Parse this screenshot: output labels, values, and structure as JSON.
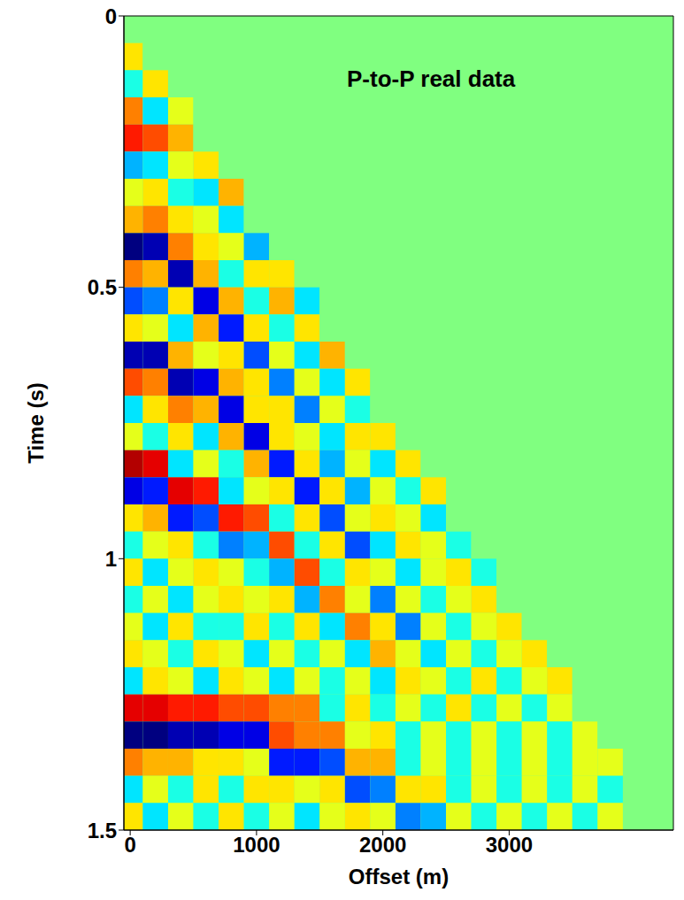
{
  "chart_data": {
    "type": "heatmap",
    "annotation": "P-to-P real data",
    "x_label": "Offset (m)",
    "y_label": "Time (s)",
    "xlim": [
      -50,
      4300
    ],
    "xticks": [
      0,
      1000,
      2000,
      3000
    ],
    "ylim": [
      0,
      1.5
    ],
    "yticks": [
      0,
      0.5,
      1,
      1.5
    ],
    "zlim": [
      -1,
      1
    ],
    "x_edges": [
      -100,
      100,
      300,
      500,
      700,
      900,
      1100,
      1300,
      1500,
      1700,
      1900,
      2100,
      2300,
      2500,
      2700,
      2900,
      3100,
      3300,
      3500,
      3700,
      3900
    ],
    "t_edges": [
      0,
      0.05,
      0.1,
      0.15,
      0.2,
      0.25,
      0.3,
      0.35,
      0.4,
      0.45,
      0.5,
      0.55,
      0.6,
      0.65,
      0.7,
      0.75,
      0.8,
      0.85,
      0.9,
      0.95,
      1,
      1.05,
      1.1,
      1.15,
      1.2,
      1.25,
      1.3,
      1.35,
      1.4,
      1.45,
      1.5
    ],
    "cells": [
      [
        0,
        0,
        0,
        0,
        0,
        0,
        0,
        0,
        0,
        0,
        0,
        0,
        0,
        0,
        0,
        0,
        0,
        0,
        0,
        0
      ],
      [
        0.3,
        0,
        0,
        0,
        0,
        0,
        0,
        0,
        0,
        0,
        0,
        0,
        0,
        0,
        0,
        0,
        0,
        0,
        0,
        0
      ],
      [
        -0.2,
        0.3,
        0,
        0,
        0,
        0,
        0,
        0,
        0,
        0,
        0,
        0,
        0,
        0,
        0,
        0,
        0,
        0,
        0,
        0
      ],
      [
        0.5,
        -0.3,
        0.2,
        0,
        0,
        0,
        0,
        0,
        0,
        0,
        0,
        0,
        0,
        0,
        0,
        0,
        0,
        0,
        0,
        0
      ],
      [
        0.7,
        0.6,
        0.4,
        0,
        0,
        0,
        0,
        0,
        0,
        0,
        0,
        0,
        0,
        0,
        0,
        0,
        0,
        0,
        0,
        0
      ],
      [
        -0.4,
        -0.3,
        0.2,
        0.3,
        0,
        0,
        0,
        0,
        0,
        0,
        0,
        0,
        0,
        0,
        0,
        0,
        0,
        0,
        0,
        0
      ],
      [
        0.2,
        0.3,
        -0.2,
        -0.3,
        0.4,
        0,
        0,
        0,
        0,
        0,
        0,
        0,
        0,
        0,
        0,
        0,
        0,
        0,
        0,
        0
      ],
      [
        0.4,
        0.5,
        0.3,
        0.2,
        -0.3,
        0,
        0,
        0,
        0,
        0,
        0,
        0,
        0,
        0,
        0,
        0,
        0,
        0,
        0,
        0
      ],
      [
        -1,
        -0.9,
        0.5,
        0.3,
        0.2,
        -0.4,
        0,
        0,
        0,
        0,
        0,
        0,
        0,
        0,
        0,
        0,
        0,
        0,
        0,
        0
      ],
      [
        0.5,
        0.4,
        -0.9,
        0.4,
        -0.2,
        0.3,
        0.3,
        0,
        0,
        0,
        0,
        0,
        0,
        0,
        0,
        0,
        0,
        0,
        0,
        0
      ],
      [
        -0.6,
        -0.5,
        0.3,
        -0.8,
        0.4,
        -0.2,
        0.4,
        -0.3,
        0,
        0,
        0,
        0,
        0,
        0,
        0,
        0,
        0,
        0,
        0,
        0
      ],
      [
        0.3,
        0.2,
        -0.3,
        0.4,
        -0.7,
        0.3,
        -0.2,
        0.3,
        0,
        0,
        0,
        0,
        0,
        0,
        0,
        0,
        0,
        0,
        0,
        0
      ],
      [
        -0.9,
        -0.9,
        0.4,
        0.2,
        0.3,
        -0.6,
        0.2,
        -0.3,
        0.4,
        0,
        0,
        0,
        0,
        0,
        0,
        0,
        0,
        0,
        0,
        0
      ],
      [
        0.6,
        0.5,
        -0.9,
        -0.8,
        0.4,
        0.3,
        -0.5,
        0.2,
        -0.3,
        0.3,
        0,
        0,
        0,
        0,
        0,
        0,
        0,
        0,
        0,
        0
      ],
      [
        -0.3,
        0.3,
        0.5,
        0.4,
        -0.8,
        0.3,
        0.3,
        -0.5,
        0.2,
        -0.2,
        0,
        0,
        0,
        0,
        0,
        0,
        0,
        0,
        0,
        0
      ],
      [
        0.2,
        -0.2,
        0.3,
        -0.3,
        0.4,
        -0.8,
        0.3,
        0.2,
        -0.3,
        0.3,
        0.3,
        0,
        0,
        0,
        0,
        0,
        0,
        0,
        0,
        0
      ],
      [
        0.9,
        0.8,
        -0.3,
        0.2,
        -0.2,
        0.4,
        -0.7,
        0.3,
        -0.4,
        0.2,
        -0.3,
        0.3,
        0,
        0,
        0,
        0,
        0,
        0,
        0,
        0
      ],
      [
        -0.8,
        -0.7,
        0.8,
        0.7,
        -0.3,
        0.2,
        0.3,
        -0.7,
        0.3,
        -0.4,
        0.2,
        -0.2,
        0.3,
        0,
        0,
        0,
        0,
        0,
        0,
        0
      ],
      [
        0.3,
        0.4,
        -0.7,
        -0.6,
        0.7,
        0.6,
        -0.2,
        0.3,
        -0.6,
        0.2,
        0.3,
        0.2,
        -0.3,
        0,
        0,
        0,
        0,
        0,
        0,
        0
      ],
      [
        -0.2,
        0.2,
        0.3,
        -0.2,
        -0.5,
        -0.4,
        0.6,
        -0.2,
        0.3,
        -0.6,
        -0.3,
        0.3,
        0.2,
        -0.2,
        0,
        0,
        0,
        0,
        0,
        0
      ],
      [
        0.3,
        -0.3,
        0.2,
        0.3,
        0.2,
        -0.2,
        -0.4,
        0.6,
        -0.2,
        0.3,
        0.2,
        -0.3,
        0.2,
        0.3,
        -0.2,
        0,
        0,
        0,
        0,
        0
      ],
      [
        -0.2,
        0.2,
        -0.3,
        0.2,
        0.3,
        0.2,
        0.3,
        -0.4,
        0.5,
        0.2,
        -0.5,
        0.2,
        -0.2,
        0.2,
        0.3,
        0,
        0,
        0,
        0,
        0
      ],
      [
        0.2,
        -0.3,
        0.3,
        -0.2,
        -0.2,
        0.3,
        -0.2,
        0.3,
        -0.3,
        0.5,
        0.3,
        -0.5,
        0.2,
        -0.2,
        0.2,
        0.3,
        0,
        0,
        0,
        0
      ],
      [
        0.3,
        0.2,
        -0.2,
        0.3,
        0.2,
        -0.3,
        0.2,
        -0.2,
        0.2,
        -0.3,
        0.4,
        0.2,
        -0.3,
        0.2,
        -0.2,
        0.2,
        0.3,
        0,
        0,
        0
      ],
      [
        -0.3,
        0.3,
        0.2,
        -0.3,
        0.3,
        0.2,
        -0.3,
        0.2,
        -0.2,
        0.2,
        -0.3,
        0.3,
        0.2,
        -0.2,
        0.3,
        -0.2,
        0.2,
        0.3,
        0,
        0
      ],
      [
        0.8,
        0.8,
        0.7,
        0.7,
        0.6,
        0.6,
        0.5,
        0.5,
        -0.2,
        0.3,
        -0.2,
        0.2,
        -0.2,
        0.3,
        -0.2,
        0.2,
        -0.2,
        0.2,
        0,
        0
      ],
      [
        -1,
        -1,
        -0.9,
        -0.9,
        -0.8,
        -0.8,
        0.6,
        0.5,
        0.5,
        0.2,
        0.3,
        -0.2,
        0.2,
        -0.2,
        0.2,
        -0.2,
        0.2,
        -0.2,
        0.2,
        0
      ],
      [
        0.5,
        0.4,
        0.4,
        0.3,
        0.3,
        0.2,
        -0.7,
        -0.7,
        -0.6,
        0.4,
        0.4,
        -0.2,
        0.2,
        -0.2,
        0.2,
        -0.2,
        0.2,
        -0.2,
        0.2,
        0.2
      ],
      [
        -0.3,
        0.2,
        -0.2,
        0.3,
        -0.2,
        0.3,
        0.3,
        0.2,
        0.3,
        -0.6,
        -0.5,
        0.3,
        0.3,
        -0.2,
        0.2,
        -0.2,
        0.2,
        -0.2,
        0.2,
        -0.2
      ],
      [
        0.3,
        -0.3,
        0.2,
        -0.2,
        0.3,
        -0.2,
        0.2,
        -0.3,
        0.2,
        0.3,
        0.2,
        -0.5,
        -0.4,
        0.2,
        -0.2,
        0.2,
        -0.2,
        0.2,
        -0.2,
        0.2
      ]
    ]
  }
}
